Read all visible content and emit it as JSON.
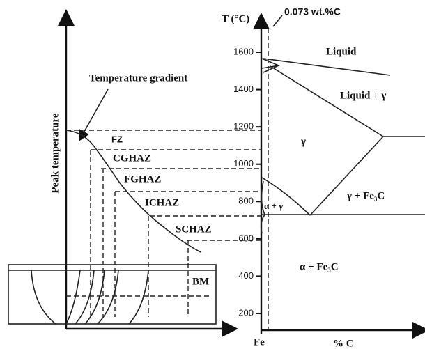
{
  "diagram": {
    "temperature_axis": {
      "title": "T (°C)",
      "ticks": [
        1600,
        1400,
        1200,
        1000,
        800,
        600,
        400,
        200
      ]
    },
    "composition_marker": "0.073 wt.%C",
    "x_axis_start": "Fe",
    "x_axis_title": "% C",
    "phases": [
      "Liquid",
      "Liquid + γ",
      "γ",
      "γ + Fe₃C",
      "α + γ",
      "α + Fe₃C"
    ],
    "left_axis_title": "Peak temperature",
    "gradient_label": "Temperature gradient",
    "zones": [
      "FZ",
      "CGHAZ",
      "FGHAZ",
      "ICHAZ",
      "SCHAZ",
      "BM"
    ]
  }
}
